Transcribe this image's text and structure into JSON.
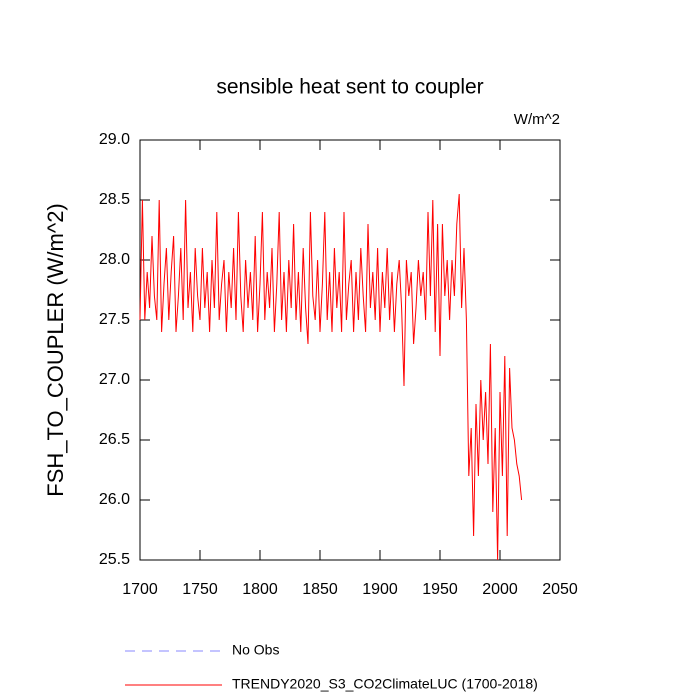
{
  "chart_data": {
    "type": "line",
    "title": "sensible heat sent to coupler",
    "units": "W/m^2",
    "y_label": "FSH_TO_COUPLER  (W/m^2)",
    "xlim": [
      1700,
      2050
    ],
    "xticks": [
      1700,
      1750,
      1800,
      1850,
      1900,
      1950,
      2000,
      2050
    ],
    "ylim": [
      25.5,
      29.0
    ],
    "yticks": [
      25.5,
      {
        "value": 26,
        "label": "26.0"
      },
      26.5,
      {
        "value": 27,
        "label": "27.0"
      },
      27.5,
      {
        "value": 28,
        "label": "28.0"
      },
      28.5,
      {
        "value": 29,
        "label": "29.0"
      }
    ],
    "series": [
      {
        "name": "No Obs",
        "color": "#8888ff",
        "dashed": true,
        "x": [],
        "values": []
      },
      {
        "name": "TRENDY2020_S3_CO2ClimateLUC (1700-2018)",
        "color": "#ff0000",
        "dashed": false,
        "x": [
          1700,
          1702,
          1704,
          1706,
          1708,
          1710,
          1712,
          1714,
          1716,
          1718,
          1720,
          1722,
          1724,
          1726,
          1728,
          1730,
          1732,
          1734,
          1736,
          1738,
          1740,
          1742,
          1744,
          1746,
          1748,
          1750,
          1752,
          1754,
          1756,
          1758,
          1760,
          1762,
          1764,
          1766,
          1768,
          1770,
          1772,
          1774,
          1776,
          1778,
          1780,
          1782,
          1784,
          1786,
          1788,
          1790,
          1792,
          1794,
          1796,
          1798,
          1800,
          1802,
          1804,
          1806,
          1808,
          1810,
          1812,
          1814,
          1816,
          1818,
          1820,
          1822,
          1824,
          1826,
          1828,
          1830,
          1832,
          1834,
          1836,
          1838,
          1840,
          1842,
          1844,
          1846,
          1848,
          1850,
          1852,
          1854,
          1856,
          1858,
          1860,
          1862,
          1864,
          1866,
          1868,
          1870,
          1872,
          1874,
          1876,
          1878,
          1880,
          1882,
          1884,
          1886,
          1888,
          1890,
          1892,
          1894,
          1896,
          1898,
          1900,
          1902,
          1904,
          1906,
          1908,
          1910,
          1912,
          1914,
          1916,
          1918,
          1920,
          1922,
          1924,
          1926,
          1928,
          1930,
          1932,
          1934,
          1936,
          1938,
          1940,
          1942,
          1944,
          1946,
          1948,
          1950,
          1952,
          1954,
          1956,
          1958,
          1960,
          1962,
          1964,
          1966,
          1968,
          1970,
          1972,
          1974,
          1976,
          1978,
          1980,
          1982,
          1984,
          1986,
          1988,
          1990,
          1992,
          1994,
          1996,
          1998,
          2000,
          2002,
          2004,
          2006,
          2008,
          2010,
          2012,
          2014,
          2016,
          2018
        ],
        "values": [
          27.5,
          28.5,
          27.5,
          27.9,
          27.6,
          28.2,
          27.7,
          27.5,
          28.5,
          27.4,
          27.8,
          28.1,
          27.5,
          27.9,
          28.2,
          27.4,
          27.7,
          28.1,
          27.5,
          28.5,
          27.6,
          27.9,
          27.4,
          28.1,
          27.7,
          27.5,
          28.1,
          27.6,
          27.9,
          27.4,
          28.0,
          27.6,
          28.4,
          27.5,
          27.8,
          28.0,
          27.4,
          27.9,
          27.6,
          28.1,
          27.5,
          28.4,
          27.7,
          27.4,
          28.0,
          27.6,
          27.9,
          27.5,
          28.2,
          27.4,
          27.8,
          28.4,
          27.5,
          27.9,
          27.6,
          28.1,
          27.4,
          27.8,
          28.4,
          27.5,
          27.9,
          27.4,
          28.0,
          27.6,
          28.3,
          27.5,
          27.9,
          27.4,
          28.1,
          27.6,
          27.3,
          28.4,
          27.7,
          27.5,
          28.0,
          27.4,
          27.8,
          28.4,
          27.5,
          27.9,
          27.4,
          28.1,
          27.6,
          27.9,
          27.4,
          28.4,
          27.5,
          27.8,
          28.0,
          27.4,
          27.9,
          27.5,
          28.1,
          27.7,
          27.4,
          28.3,
          27.6,
          27.9,
          27.5,
          28.1,
          27.4,
          27.9,
          27.6,
          28.1,
          27.5,
          27.9,
          27.4,
          27.8,
          28.0,
          27.6,
          26.95,
          28.0,
          27.7,
          27.9,
          27.3,
          27.6,
          28.0,
          27.7,
          27.9,
          27.5,
          28.4,
          27.7,
          28.5,
          27.4,
          28.3,
          27.2,
          28.3,
          27.7,
          28.0,
          27.5,
          28.0,
          27.7,
          28.3,
          28.55,
          27.6,
          28.1,
          27.5,
          26.2,
          26.6,
          25.7,
          26.8,
          26.2,
          27.0,
          26.5,
          26.9,
          26.3,
          27.3,
          25.9,
          26.6,
          25.5,
          26.9,
          26.2,
          27.2,
          25.7,
          27.1,
          26.6,
          26.5,
          26.3,
          26.2,
          26.0
        ]
      }
    ]
  }
}
